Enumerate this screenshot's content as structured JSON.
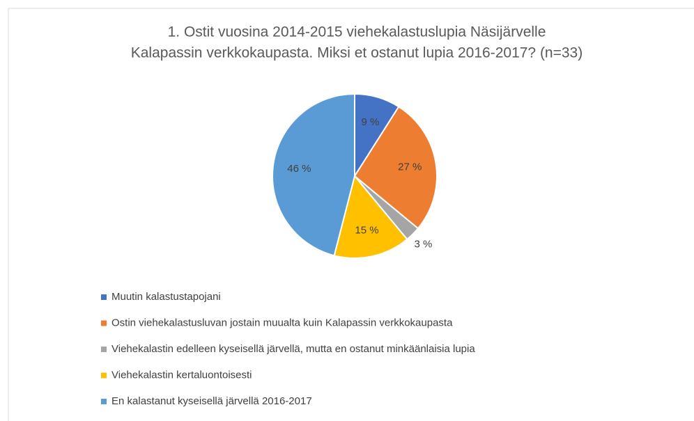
{
  "chart_data": {
    "type": "pie",
    "title": [
      "1. Ostit vuosina 2014-2015 viehekalastuslupia Näsijärvelle",
      "Kalapassin verkkokaupasta. Miksi et ostanut lupia 2016-2017? (n=33)"
    ],
    "categories": [
      "Muutin kalastustapojani",
      "Ostin viehekalastusluvan jostain muualta kuin Kalapassin verkkokaupasta",
      "Viehekalastin edelleen kyseisellä järvellä, mutta en ostanut minkäänlaisia lupia",
      "Viehekalastin kertaluontoisesti",
      "En kalastanut kyseisellä järvellä 2016-2017"
    ],
    "values": [
      9,
      27,
      3,
      15,
      46
    ],
    "value_labels": [
      "9 %",
      "27 %",
      "3 %",
      "15 %",
      "46 %"
    ],
    "colors": [
      "#4472c4",
      "#ed7d31",
      "#a5a5a5",
      "#ffc000",
      "#5b9bd5"
    ],
    "legend": "bottom"
  }
}
